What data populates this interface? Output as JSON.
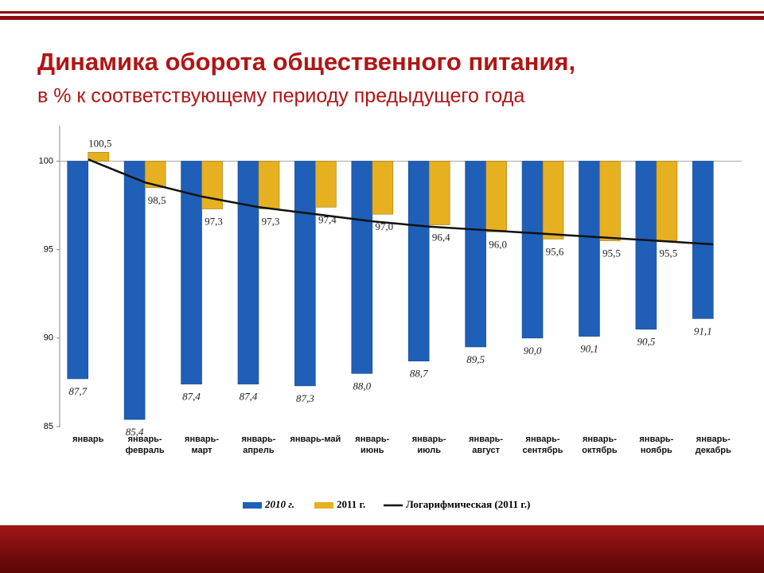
{
  "chart_data": {
    "type": "bar",
    "title": "Динамика оборота общественного питания,",
    "subtitle": "в % к соответствующему периоду предыдущего года",
    "categories": [
      "январь",
      "январь-февраль",
      "январь-март",
      "январь-апрель",
      "январь-май",
      "январь-июнь",
      "январь-июль",
      "январь-август",
      "январь-сентябрь",
      "январь-октябрь",
      "январь-ноябрь",
      "январь-декабрь"
    ],
    "baseline": 100,
    "series": [
      {
        "name": "2010 г.",
        "color": "#1f5fb8",
        "values": [
          87.7,
          85.4,
          87.4,
          87.4,
          87.3,
          88.0,
          88.7,
          89.5,
          90.0,
          90.1,
          90.5,
          91.1
        ],
        "value_labels": [
          "87,7",
          "85,4",
          "87,4",
          "87,4",
          "87,3",
          "88,0",
          "88,7",
          "89,5",
          "90,0",
          "90,1",
          "90,5",
          "91,1"
        ]
      },
      {
        "name": "2011 г.",
        "color": "#e6b020",
        "values": [
          100.5,
          98.5,
          97.3,
          97.3,
          97.4,
          97.0,
          96.4,
          96.0,
          95.6,
          95.5,
          95.5,
          null
        ],
        "value_labels": [
          "100,5",
          "98,5",
          "97,3",
          "97,3",
          "97,4",
          "97,0",
          "96,4",
          "96,0",
          "95,6",
          "95,5",
          "95,5",
          null
        ]
      },
      {
        "name": "Логарифмическая (2011 г.)",
        "type": "line",
        "color": "#111111",
        "values": [
          100.1,
          98.8,
          98.0,
          97.4,
          97.0,
          96.6,
          96.3,
          96.1,
          95.9,
          95.7,
          95.5,
          95.3
        ]
      }
    ],
    "ylim": [
      85,
      102
    ],
    "yticks": [
      85,
      90,
      95,
      100
    ]
  }
}
